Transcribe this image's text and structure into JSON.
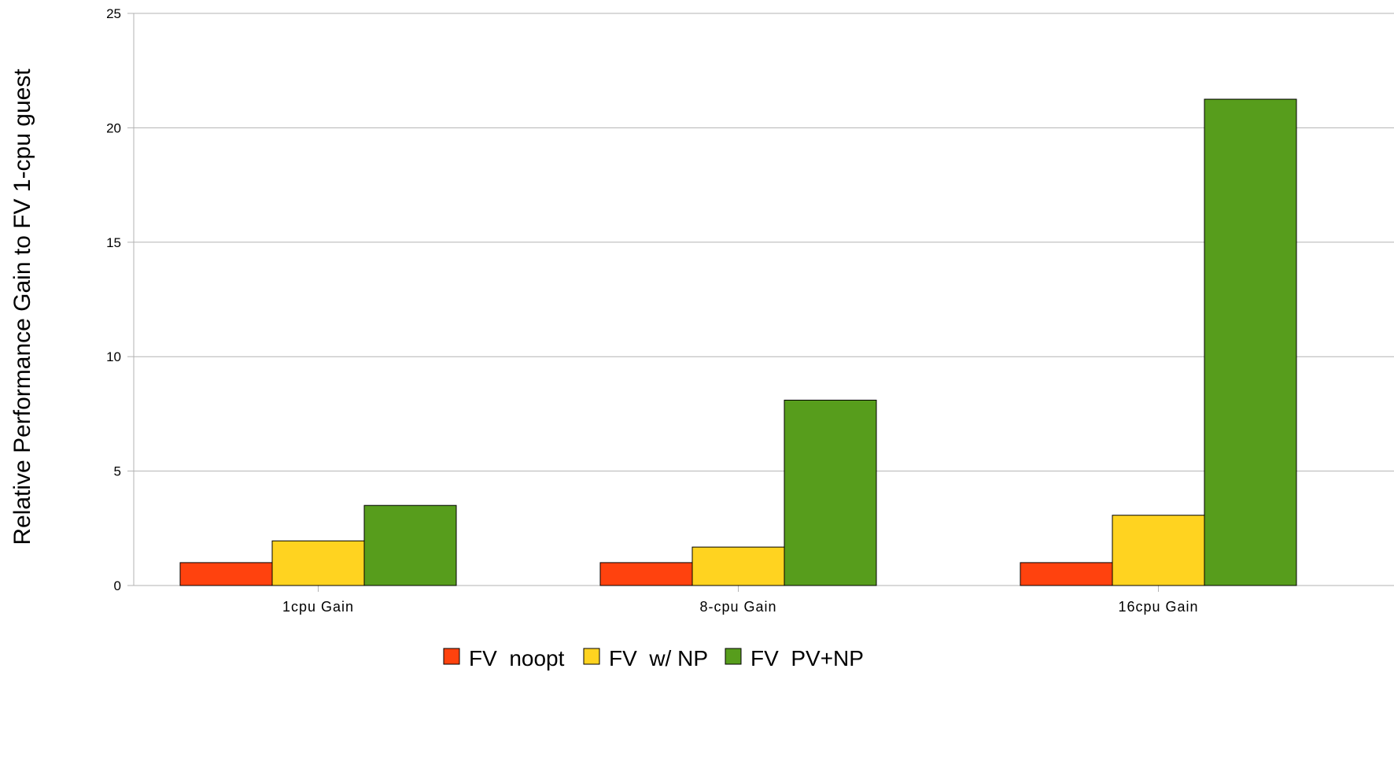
{
  "chart_data": {
    "type": "bar",
    "title": "",
    "xlabel": "",
    "ylabel": "Relative Performance Gain to FV 1-cpu guest",
    "categories": [
      "1cpu Gain",
      "8-cpu Gain",
      "16cpu Gain"
    ],
    "series": [
      {
        "name": "FV  noopt",
        "color": "#ff420e",
        "values": [
          1.0,
          1.0,
          1.0
        ]
      },
      {
        "name": "FV  w/ NP",
        "color": "#ffd320",
        "values": [
          1.95,
          1.68,
          3.07
        ]
      },
      {
        "name": "FV  PV+NP",
        "color": "#579d1c",
        "values": [
          3.5,
          8.1,
          21.25
        ]
      }
    ],
    "ylim": [
      0,
      25
    ],
    "yticks": [
      "0",
      "5",
      "10",
      "15",
      "20",
      "25"
    ],
    "grid": true,
    "legend": "bottom"
  },
  "colors": {
    "gridline": "#b3b3b3",
    "axis": "#b3b3b3",
    "bar_outline": "#000000"
  }
}
